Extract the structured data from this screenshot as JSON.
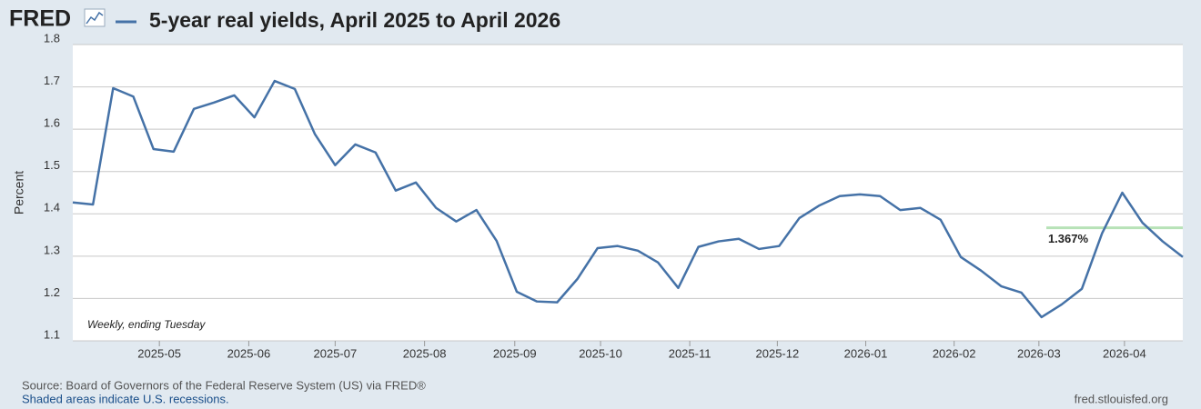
{
  "logo": "FRED",
  "chart_data": {
    "type": "line",
    "title": "5-year real yields, April 2025 to April 2026",
    "y_label": "Percent",
    "note": "Weekly, ending Tuesday",
    "source": "Source: Board of Governors of the Federal Reserve System (US) via FRED®",
    "recession_note": "Shaded areas indicate U.S. recessions.",
    "site": "fred.stlouisfed.org",
    "series": [
      {
        "color": "#4572a7",
        "values": [
          1.427,
          1.422,
          1.697,
          1.677,
          1.553,
          1.547,
          1.648,
          1.663,
          1.68,
          1.628,
          1.714,
          1.695,
          1.588,
          1.515,
          1.564,
          1.545,
          1.455,
          1.474,
          1.414,
          1.382,
          1.409,
          1.336,
          1.216,
          1.193,
          1.191,
          1.246,
          1.319,
          1.324,
          1.313,
          1.285,
          1.225,
          1.322,
          1.335,
          1.341,
          1.317,
          1.324,
          1.39,
          1.42,
          1.442,
          1.446,
          1.442,
          1.409,
          1.414,
          1.386,
          1.298,
          1.266,
          1.229,
          1.214,
          1.156,
          1.186,
          1.223,
          1.354,
          1.45,
          1.379,
          1.335,
          1.298
        ]
      }
    ],
    "xlim": [
      0,
      55
    ],
    "xticks": [
      {
        "value": 4.29,
        "label": "2025-05"
      },
      {
        "value": 8.72,
        "label": "2025-06"
      },
      {
        "value": 13.0,
        "label": "2025-07"
      },
      {
        "value": 17.43,
        "label": "2025-08"
      },
      {
        "value": 21.9,
        "label": "2025-09"
      },
      {
        "value": 26.15,
        "label": "2025-10"
      },
      {
        "value": 30.57,
        "label": "2025-11"
      },
      {
        "value": 34.91,
        "label": "2025-12"
      },
      {
        "value": 39.29,
        "label": "2026-01"
      },
      {
        "value": 43.67,
        "label": "2026-02"
      },
      {
        "value": 47.87,
        "label": "2026-03"
      },
      {
        "value": 52.11,
        "label": "2026-04"
      }
    ],
    "ylim": [
      1.1,
      1.8
    ],
    "yticks": [
      1.1,
      1.2,
      1.3,
      1.4,
      1.5,
      1.6,
      1.7,
      1.8
    ],
    "grid": true,
    "reference_line": {
      "value": 1.367,
      "label": "1.367%",
      "color": "#b7e2b7"
    }
  }
}
